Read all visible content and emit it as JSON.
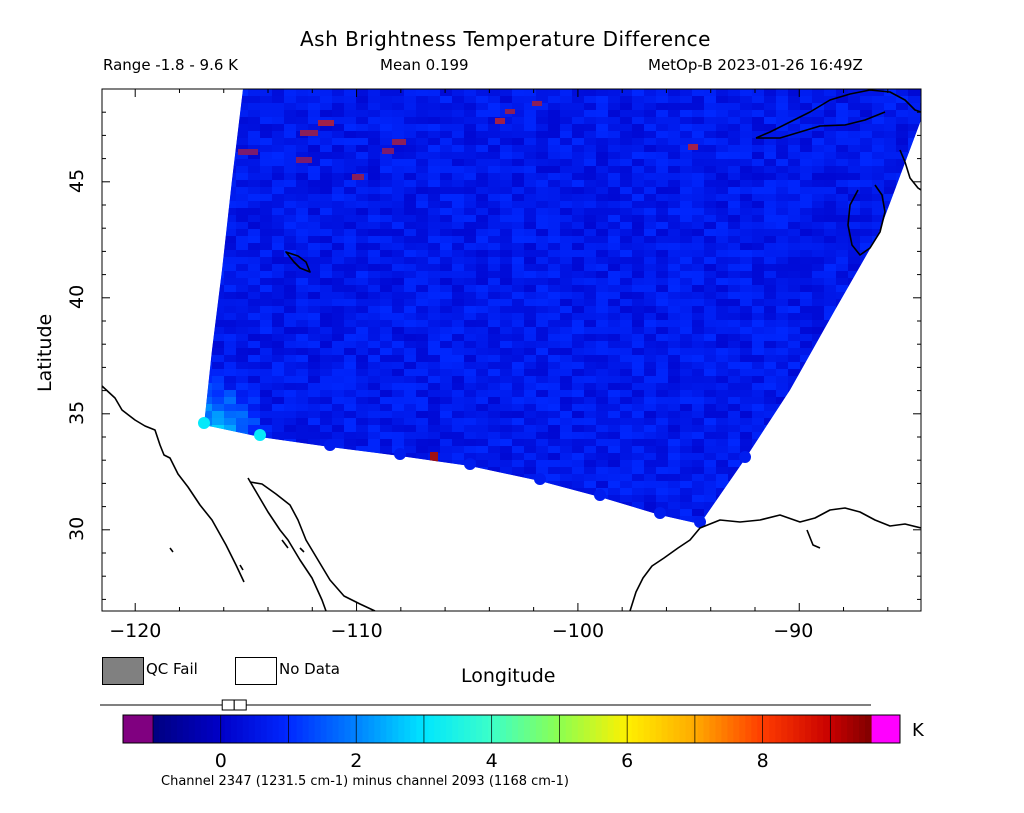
{
  "title": "Ash Brightness Temperature Difference",
  "range_label": "Range -1.8 - 9.6 K",
  "mean_label": "Mean 0.199",
  "satellite_time_label": "MetOp-B 2023-01-26 16:49Z",
  "map": {
    "lon_range": [
      -121.5,
      -84.5
    ],
    "lat_range": [
      26.5,
      49
    ],
    "x_ticks": [
      -120,
      -110,
      -100,
      -90
    ],
    "x_tick_labels": [
      "−120",
      "−110",
      "−100",
      "−90"
    ],
    "y_ticks": [
      30,
      35,
      40,
      45
    ],
    "y_tick_labels": [
      "30",
      "35",
      "40",
      "45"
    ],
    "xlabel": "Longitude",
    "ylabel": "Latitude",
    "swath_base_value_K": 0.6,
    "coastline_color": "#000000"
  },
  "legend": {
    "qc_fail_label": "QC Fail",
    "qc_fail_color": "#808080",
    "no_data_label": "No Data",
    "no_data_color": "#ffffff"
  },
  "colorbar": {
    "min": -1.8,
    "max": 9.6,
    "ticks": [
      0,
      2,
      4,
      6,
      8
    ],
    "tick_labels": [
      "0",
      "2",
      "4",
      "6",
      "8"
    ],
    "unit": "K",
    "under_color": "#800080",
    "over_color": "#ff00ff",
    "mean_marker_value": 0.199,
    "caption": "Channel 2347 (1231.5 cm-1) minus channel 2093 (1168 cm-1)"
  }
}
